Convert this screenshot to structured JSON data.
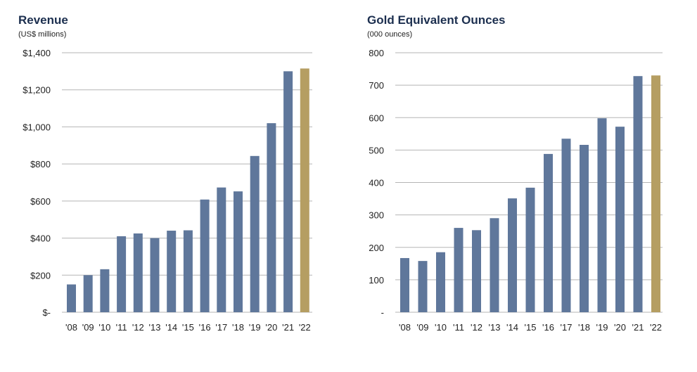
{
  "chart_data": [
    {
      "type": "bar",
      "title": "Revenue",
      "subtitle": "(US$ millions)",
      "categories": [
        "'08",
        "'09",
        "'10",
        "'11",
        "'12",
        "'13",
        "'14",
        "'15",
        "'16",
        "'17",
        "'18",
        "'19",
        "'20",
        "'21",
        "'22"
      ],
      "values": [
        150,
        200,
        232,
        410,
        425,
        400,
        440,
        442,
        608,
        673,
        652,
        843,
        1020,
        1300,
        1315
      ],
      "ylim": [
        0,
        1400
      ],
      "yticks": [
        0,
        200,
        400,
        600,
        800,
        1000,
        1200,
        1400
      ],
      "ytick_labels": [
        "$-",
        "$200",
        "$400",
        "$600",
        "$800",
        "$1,000",
        "$1,200",
        "$1,400"
      ],
      "grid": true,
      "xlabel": "",
      "ylabel": ""
    },
    {
      "type": "bar",
      "title": "Gold Equivalent Ounces",
      "subtitle": "(000 ounces)",
      "categories": [
        "'08",
        "'09",
        "'10",
        "'11",
        "'12",
        "'13",
        "'14",
        "'15",
        "'16",
        "'17",
        "'18",
        "'19",
        "'20",
        "'21",
        "'22"
      ],
      "values": [
        167,
        158,
        185,
        260,
        253,
        290,
        351,
        384,
        488,
        535,
        516,
        598,
        572,
        728,
        730
      ],
      "ylim": [
        0,
        800
      ],
      "yticks": [
        0,
        100,
        200,
        300,
        400,
        500,
        600,
        700,
        800
      ],
      "ytick_labels": [
        "-",
        "100",
        "200",
        "300",
        "400",
        "500",
        "600",
        "700",
        "800"
      ],
      "grid": true,
      "xlabel": "",
      "ylabel": ""
    }
  ],
  "colors": {
    "bar": "#5f779b",
    "highlight_bar": "#b59e62",
    "grid": "#b5b5b5",
    "title": "#1c2f4f",
    "text": "#222222"
  }
}
